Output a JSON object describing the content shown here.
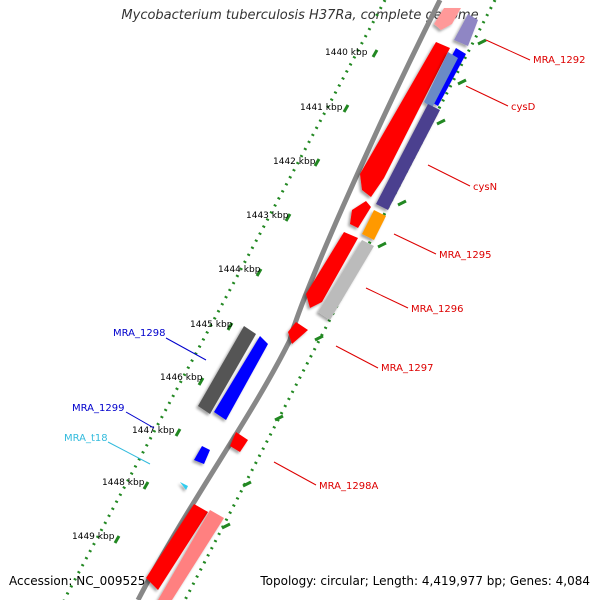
{
  "title": "Mycobacterium tuberculosis H37Ra, complete genome",
  "footer": {
    "accession": "Accession: NC_009525",
    "topology": "Topology: circular; Length: 4,419,977 bp; Genes: 4,084"
  },
  "scale": {
    "ticks": [
      "1440 kbp",
      "1441 kbp",
      "1442 kbp",
      "1443 kbp",
      "1444 kbp",
      "1445 kbp",
      "1446 kbp",
      "1447 kbp",
      "1448 kbp",
      "1449 kbp"
    ]
  },
  "genes": {
    "forward": [
      "MRA_1292",
      "cysD",
      "cysN",
      "MRA_1295",
      "MRA_1296",
      "MRA_1297",
      "MRA_1298A"
    ],
    "reverse": [
      "MRA_1298",
      "MRA_1299",
      "MRA_t18"
    ]
  },
  "colors": {
    "forward_cds": "#ff0000",
    "reverse_cds": "#0000ff",
    "trna": "#33ccee",
    "sulfate_activation": "#4b3f8f",
    "conserved_hypothetical": "#bbbbbb",
    "other_function": "#ff9900",
    "reverse_gray": "#555555",
    "tick_green": "#228822",
    "backbone": "#888888"
  }
}
